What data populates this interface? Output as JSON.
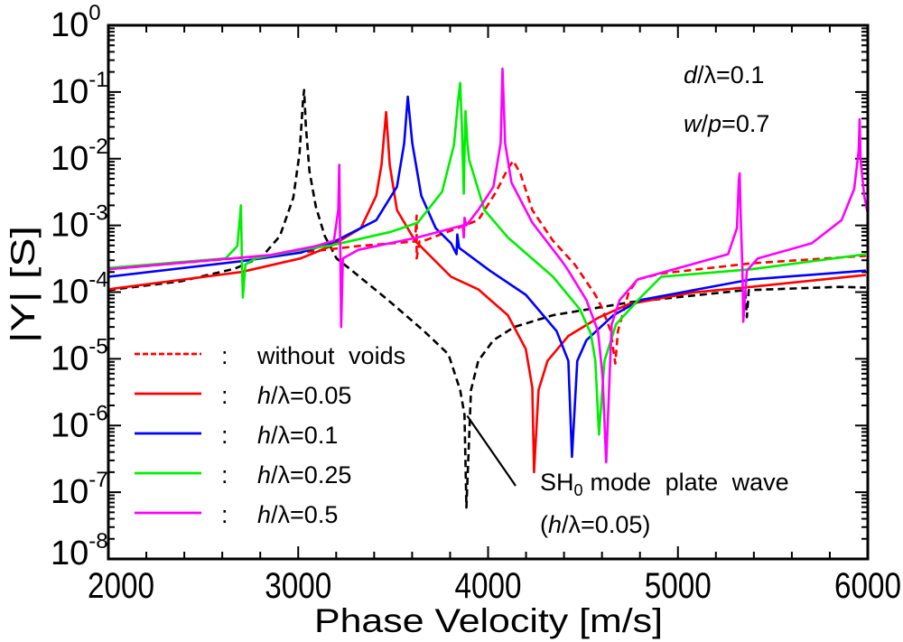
{
  "chart_data": {
    "type": "line",
    "xlabel": "Phase Velocity [m/s]",
    "ylabel": "|Y| [S]",
    "xlim": [
      2000,
      6000
    ],
    "ylim": [
      1e-08,
      1
    ],
    "yscale": "log",
    "grid": false,
    "legend_placement": "bottom-left",
    "x_ticks": [
      "2000",
      "3000",
      "4000",
      "5000",
      "6000"
    ],
    "y_ticks": [
      {
        "base": "10",
        "exp": "0"
      },
      {
        "base": "10",
        "exp": "-1"
      },
      {
        "base": "10",
        "exp": "-2"
      },
      {
        "base": "10",
        "exp": "-3"
      },
      {
        "base": "10",
        "exp": "-4"
      },
      {
        "base": "10",
        "exp": "-5"
      },
      {
        "base": "10",
        "exp": "-6"
      },
      {
        "base": "10",
        "exp": "-7"
      },
      {
        "base": "10",
        "exp": "-8"
      }
    ],
    "parameters": [
      "d/λ=0.1",
      "w/p=0.7"
    ],
    "annotation": {
      "main": "SH",
      "sub": "0",
      "rest": "mode plate wave",
      "line2": "(h/λ=0.05)",
      "points_to": [
        3890,
        1.4e-06
      ]
    },
    "series": [
      {
        "key": "sh0",
        "color": "#000000",
        "dashed": true,
        "points": [
          [
            2000,
            0.000107
          ],
          [
            2380,
            0.000145
          ],
          [
            2665,
            0.000224
          ],
          [
            2808,
            0.000337
          ],
          [
            2903,
            0.00069
          ],
          [
            2974,
            0.0026
          ],
          [
            3007,
            0.012
          ],
          [
            3026,
            0.078
          ],
          [
            3031,
            0.107
          ],
          [
            3040,
            0.031
          ],
          [
            3059,
            0.0065
          ],
          [
            3093,
            0.0019
          ],
          [
            3140,
            0.00069
          ],
          [
            3202,
            0.00032
          ],
          [
            3283,
            0.00021
          ],
          [
            3473,
            7.6e-05
          ],
          [
            3663,
            2.6e-05
          ],
          [
            3791,
            1.17e-05
          ],
          [
            3853,
            3.4e-06
          ],
          [
            3876,
            1.45e-06
          ],
          [
            3886,
            5.9e-08
          ],
          [
            3910,
            3.4e-06
          ],
          [
            3948,
            9.3e-06
          ],
          [
            4028,
            1.9e-05
          ],
          [
            4138,
            3e-05
          ],
          [
            4342,
            4.5e-05
          ],
          [
            4755,
            7.1e-05
          ],
          [
            5354,
            0.000107
          ],
          [
            5363,
            4.2e-05
          ],
          [
            5373,
            0.000107
          ],
          [
            5848,
            0.00012
          ],
          [
            5990,
            0.000117
          ]
        ]
      },
      {
        "key": "without-voids",
        "name": "without voids",
        "color": "#ff0000",
        "dashed": true,
        "points": [
          [
            2000,
            0.00022
          ],
          [
            3012,
            0.00039
          ],
          [
            3316,
            0.00049
          ],
          [
            3615,
            0.000575
          ],
          [
            3624,
            0.0014
          ],
          [
            3624,
            0.00032
          ],
          [
            3639,
            0.000575
          ],
          [
            3663,
            0.00059
          ],
          [
            3791,
            0.00081
          ],
          [
            3948,
            0.0012
          ],
          [
            4043,
            0.0032
          ],
          [
            4104,
            0.0071
          ],
          [
            4133,
            0.0093
          ],
          [
            4171,
            0.0059
          ],
          [
            4233,
            0.0017
          ],
          [
            4342,
            0.00059
          ],
          [
            4456,
            0.00026
          ],
          [
            4565,
            9.1e-05
          ],
          [
            4598,
            6e-05
          ],
          [
            4646,
            2.6e-05
          ],
          [
            4670,
            8.5e-06
          ],
          [
            4684,
            2.6e-05
          ],
          [
            4741,
            0.0001
          ],
          [
            4788,
            0.000155
          ],
          [
            4912,
            0.00019
          ],
          [
            5387,
            0.00027
          ],
          [
            5990,
            0.00035
          ]
        ]
      },
      {
        "key": "h005",
        "name": "h/λ=0.05",
        "color": "#ff0000",
        "dashed": false,
        "points": [
          [
            2000,
            0.00011
          ],
          [
            2698,
            0.0002
          ],
          [
            3012,
            0.00032
          ],
          [
            3173,
            0.00049
          ],
          [
            3330,
            0.00091
          ],
          [
            3411,
            0.0028
          ],
          [
            3439,
            0.0081
          ],
          [
            3463,
            0.05
          ],
          [
            3482,
            0.0081
          ],
          [
            3520,
            0.0017
          ],
          [
            3615,
            0.00059
          ],
          [
            3805,
            0.00017
          ],
          [
            3948,
            0.00011
          ],
          [
            4104,
            4.5e-05
          ],
          [
            4199,
            1.4e-05
          ],
          [
            4233,
            3.7e-06
          ],
          [
            4242,
            2e-07
          ],
          [
            4266,
            3.4e-06
          ],
          [
            4313,
            9.3e-06
          ],
          [
            4423,
            2.2e-05
          ],
          [
            4579,
            4.1e-05
          ],
          [
            4741,
            6.6e-05
          ],
          [
            5073,
            9.8e-05
          ],
          [
            5387,
            0.00012
          ],
          [
            5990,
            0.00018
          ]
        ]
      },
      {
        "key": "h01",
        "name": "h/λ=0.1",
        "color": "#0000ff",
        "dashed": false,
        "points": [
          [
            2000,
            0.00017
          ],
          [
            2698,
            0.00029
          ],
          [
            3012,
            0.00039
          ],
          [
            3173,
            0.00054
          ],
          [
            3411,
            0.0012
          ],
          [
            3520,
            0.0038
          ],
          [
            3558,
            0.017
          ],
          [
            3577,
            0.085
          ],
          [
            3601,
            0.017
          ],
          [
            3648,
            0.0028
          ],
          [
            3724,
            0.00091
          ],
          [
            3805,
            0.00054
          ],
          [
            3834,
            0.00037
          ],
          [
            3838,
            0.00073
          ],
          [
            3848,
            0.00046
          ],
          [
            4009,
            0.00021
          ],
          [
            4199,
            9.1e-05
          ],
          [
            4361,
            2.6e-05
          ],
          [
            4423,
            9.3e-06
          ],
          [
            4442,
            3.4e-07
          ],
          [
            4470,
            9.3e-06
          ],
          [
            4518,
            1.9e-05
          ],
          [
            4660,
            4.5e-05
          ],
          [
            4803,
            7.6e-05
          ],
          [
            5387,
            0.000155
          ],
          [
            5990,
            0.00021
          ]
        ]
      },
      {
        "key": "h025",
        "name": "h/λ=0.25",
        "color": "#00ee00",
        "dashed": false,
        "points": [
          [
            2000,
            0.00023
          ],
          [
            2618,
            0.00032
          ],
          [
            2679,
            0.00049
          ],
          [
            2694,
            0.0014
          ],
          [
            2698,
            0.002
          ],
          [
            2703,
            0.00035
          ],
          [
            2708,
            8.3e-05
          ],
          [
            2722,
            0.00026
          ],
          [
            2774,
            0.00032
          ],
          [
            3012,
            0.00043
          ],
          [
            3173,
            0.0005
          ],
          [
            3487,
            0.0008
          ],
          [
            3630,
            0.0011
          ],
          [
            3758,
            0.0032
          ],
          [
            3820,
            0.016
          ],
          [
            3843,
            0.078
          ],
          [
            3853,
            0.137
          ],
          [
            3862,
            0.031
          ],
          [
            3872,
            0.003
          ],
          [
            3876,
            0.012
          ],
          [
            3881,
            0.052
          ],
          [
            3891,
            0.017
          ],
          [
            3900,
            0.0097
          ],
          [
            3981,
            0.0017
          ],
          [
            4104,
            0.00066
          ],
          [
            4342,
            0.00017
          ],
          [
            4484,
            5.5e-05
          ],
          [
            4541,
            2.4e-05
          ],
          [
            4565,
            9.3e-06
          ],
          [
            4584,
            7.3e-07
          ],
          [
            4613,
            9.3e-06
          ],
          [
            4674,
            3.3e-05
          ],
          [
            4803,
            8.3e-05
          ],
          [
            4912,
            0.00017
          ],
          [
            5387,
            0.00022
          ],
          [
            5990,
            0.00037
          ]
        ]
      },
      {
        "key": "h05",
        "name": "h/λ=0.5",
        "color": "#ff00ff",
        "dashed": false,
        "points": [
          [
            2000,
            0.00022
          ],
          [
            2855,
            0.00036
          ],
          [
            3093,
            0.00049
          ],
          [
            3188,
            0.00059
          ],
          [
            3211,
            0.0017
          ],
          [
            3216,
            0.0081
          ],
          [
            3221,
            0.00059
          ],
          [
            3226,
            3e-05
          ],
          [
            3235,
            0.00032
          ],
          [
            3316,
            0.00043
          ],
          [
            3629,
            0.00066
          ],
          [
            3867,
            0.001
          ],
          [
            3872,
            0.00066
          ],
          [
            3876,
            0.0013
          ],
          [
            3886,
            0.001
          ],
          [
            3948,
            0.0017
          ],
          [
            4028,
            0.0038
          ],
          [
            4066,
            0.017
          ],
          [
            4076,
            0.224
          ],
          [
            4090,
            0.017
          ],
          [
            4123,
            0.0044
          ],
          [
            4233,
            0.0011
          ],
          [
            4389,
            0.00029
          ],
          [
            4423,
            0.00021
          ],
          [
            4518,
            7.6e-05
          ],
          [
            4579,
            2.6e-05
          ],
          [
            4603,
            5.5e-06
          ],
          [
            4622,
            2.8e-07
          ],
          [
            4651,
            3.3e-05
          ],
          [
            4693,
            7.6e-05
          ],
          [
            4788,
            0.000155
          ],
          [
            5073,
            0.00026
          ],
          [
            5264,
            0.00037
          ],
          [
            5311,
            0.00091
          ],
          [
            5321,
            0.0048
          ],
          [
            5325,
            0.006
          ],
          [
            5330,
            0.0017
          ],
          [
            5340,
            0.00021
          ],
          [
            5344,
            3.6e-05
          ],
          [
            5363,
            0.00021
          ],
          [
            5420,
            0.00032
          ],
          [
            5705,
            0.00054
          ],
          [
            5862,
            0.0012
          ],
          [
            5928,
            0.0035
          ],
          [
            5952,
            0.013
          ],
          [
            5957,
            0.039
          ],
          [
            5962,
            0.0098
          ],
          [
            5981,
            0.0028
          ],
          [
            6000,
            0.0015
          ]
        ]
      }
    ],
    "legend": [
      {
        "series": "without-voids",
        "separator": ":",
        "label": "without voids"
      },
      {
        "series": "h005",
        "separator": ":",
        "label": "h/λ=0.05"
      },
      {
        "series": "h01",
        "separator": ":",
        "label": "h/λ=0.1"
      },
      {
        "series": "h025",
        "separator": ":",
        "label": "h/λ=0.25"
      },
      {
        "series": "h05",
        "separator": ":",
        "label": "h/λ=0.5"
      }
    ]
  }
}
